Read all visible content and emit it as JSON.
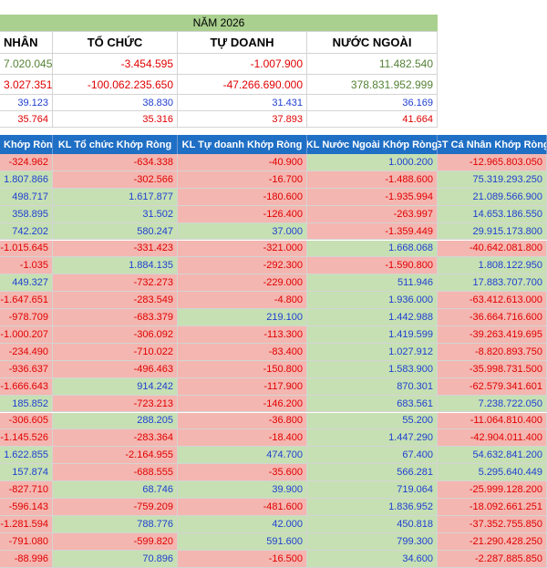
{
  "summary": {
    "year_title": "NĂM 2026",
    "headers": [
      "NHÂN",
      "TỔ CHỨC",
      "TỰ DOANH",
      "NƯỚC NGOÀI"
    ],
    "volume_row": [
      "7.020.045",
      "-3.454.595",
      "-1.007.900",
      "11.482.540"
    ],
    "value_row": [
      "3.027.351",
      "-100.062.235.650",
      "-47.266.690.000",
      "378.831.952.999"
    ],
    "row3": [
      "39.123",
      "38.830",
      "31.431",
      "36.169"
    ],
    "row4": [
      "35.764",
      "35.316",
      "37.893",
      "41.664"
    ]
  },
  "table": {
    "headers": [
      "Khớp Ròng",
      "KL Tổ chức Khớp Ròng",
      "KL Tự doanh Khớp Ròng",
      "KL Nước Ngoài Khớp Ròng",
      "GT Cá Nhân Khớp Ròng"
    ],
    "rows": [
      [
        "-324.962",
        "-634.338",
        "-40.900",
        "1.000.200",
        "-12.965.803.050"
      ],
      [
        "1.807.866",
        "-302.566",
        "-16.700",
        "-1.488.600",
        "75.319.293.250"
      ],
      [
        "498.717",
        "1.617.877",
        "-180.600",
        "-1.935.994",
        "21.089.566.900"
      ],
      [
        "358.895",
        "31.502",
        "-126.400",
        "-263.997",
        "14.653.186.550"
      ],
      [
        "742.202",
        "580.247",
        "37.000",
        "-1.359.449",
        "29.915.173.800"
      ],
      [
        "-1.015.645",
        "-331.423",
        "-321.000",
        "1.668.068",
        "-40.642.081.800"
      ],
      [
        "-1.035",
        "1.884.135",
        "-292.300",
        "-1.590.800",
        "1.808.122.950"
      ],
      [
        "449.327",
        "-732.273",
        "-229.000",
        "511.946",
        "17.883.707.700"
      ],
      [
        "-1.647.651",
        "-283.549",
        "-4.800",
        "1.936.000",
        "-63.412.613.000"
      ],
      [
        "-978.709",
        "-683.379",
        "219.100",
        "1.442.988",
        "-36.664.716.600"
      ],
      [
        "-1.000.207",
        "-306.092",
        "-113.300",
        "1.419.599",
        "-39.263.419.695"
      ],
      [
        "-234.490",
        "-710.022",
        "-83.400",
        "1.027.912",
        "-8.820.893.750"
      ],
      [
        "-936.637",
        "-496.463",
        "-150.800",
        "1.583.900",
        "-35.998.731.500"
      ],
      [
        "-1.666.643",
        "914.242",
        "-117.900",
        "870.301",
        "-62.579.341.601"
      ],
      [
        "185.852",
        "-723.213",
        "-146.200",
        "683.561",
        "7.238.722.050"
      ],
      [
        "-306.605",
        "288.205",
        "-36.800",
        "55.200",
        "-11.064.810.400"
      ],
      [
        "-1.145.526",
        "-283.364",
        "-18.400",
        "1.447.290",
        "-42.904.011.400"
      ],
      [
        "1.622.855",
        "-2.164.955",
        "474.700",
        "67.400",
        "54.632.841.200"
      ],
      [
        "157.874",
        "-688.555",
        "-35.600",
        "566.281",
        "5.295.640.449"
      ],
      [
        "-827.710",
        "68.746",
        "39.900",
        "719.064",
        "-25.999.128.200"
      ],
      [
        "-596.143",
        "-759.209",
        "-481.600",
        "1.836.952",
        "-18.092.661.251"
      ],
      [
        "-1.281.594",
        "788.776",
        "42.000",
        "450.818",
        "-37.352.755.850"
      ],
      [
        "-791.080",
        "-599.820",
        "591.600",
        "799.300",
        "-21.290.428.250"
      ],
      [
        "-88.996",
        "70.896",
        "-16.500",
        "34.600",
        "-2.287.885.850"
      ]
    ]
  }
}
